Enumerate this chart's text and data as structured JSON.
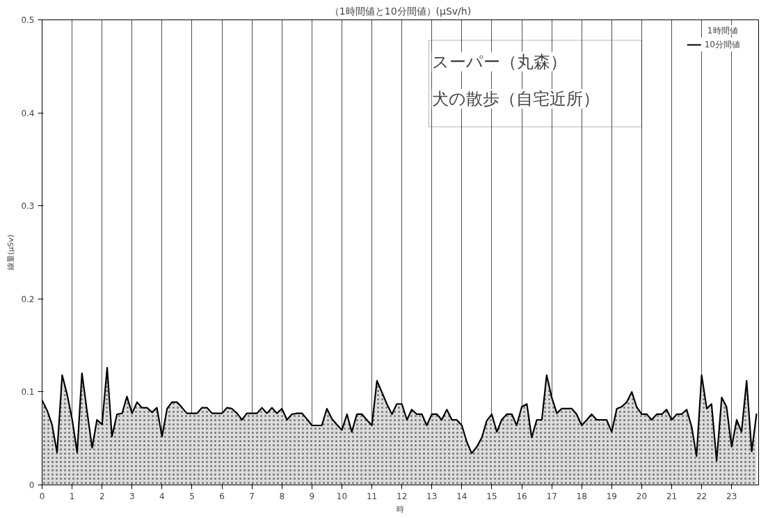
{
  "chart_data": {
    "type": "area",
    "title": "（1時間値と10分間値）(μSv/h)",
    "ylabel": "線量(μSv)",
    "xlabel": "時",
    "xlim": [
      0,
      23.9
    ],
    "xticks": [
      0,
      1,
      2,
      3,
      4,
      5,
      6,
      7,
      8,
      9,
      10,
      11,
      12,
      13,
      14,
      15,
      16,
      17,
      18,
      19,
      20,
      21,
      22,
      23
    ],
    "ylim": [
      0,
      0.5
    ],
    "yticks": [
      0,
      0.1,
      0.2,
      0.3,
      0.4,
      0.5
    ],
    "grid": "x",
    "legend": "top right",
    "annotations": [
      "スーパー（丸森）",
      "犬の散歩（自宅近所）",
      "1時間値"
    ],
    "series": [
      {
        "name": "10分間値",
        "color": "#000000",
        "x": [
          0,
          0.17,
          0.33,
          0.5,
          0.67,
          0.83,
          1,
          1.17,
          1.33,
          1.5,
          1.67,
          1.83,
          2,
          2.17,
          2.33,
          2.5,
          2.67,
          2.83,
          3,
          3.17,
          3.33,
          3.5,
          3.67,
          3.83,
          4,
          4.17,
          4.33,
          4.5,
          4.67,
          4.83,
          5,
          5.17,
          5.33,
          5.5,
          5.67,
          5.83,
          6,
          6.17,
          6.33,
          6.5,
          6.67,
          6.83,
          7,
          7.17,
          7.33,
          7.5,
          7.67,
          7.83,
          8,
          8.17,
          8.33,
          8.5,
          8.67,
          8.83,
          9,
          9.17,
          9.33,
          9.5,
          9.67,
          9.83,
          10,
          10.17,
          10.33,
          10.5,
          10.67,
          10.83,
          11,
          11.17,
          11.33,
          11.5,
          11.67,
          11.83,
          12,
          12.17,
          12.33,
          12.5,
          12.67,
          12.83,
          13,
          13.17,
          13.33,
          13.5,
          13.67,
          13.83,
          14,
          14.17,
          14.33,
          14.5,
          14.67,
          14.83,
          15,
          15.17,
          15.33,
          15.5,
          15.67,
          15.83,
          16,
          16.17,
          16.33,
          16.5,
          16.67,
          16.83,
          17,
          17.17,
          17.33,
          17.5,
          17.67,
          17.83,
          18,
          18.17,
          18.33,
          18.5,
          18.67,
          18.83,
          19,
          19.17,
          19.33,
          19.5,
          19.67,
          19.83,
          20,
          20.17,
          20.33,
          20.5,
          20.67,
          20.83,
          21,
          21.17,
          21.33,
          21.5,
          21.67,
          21.83,
          22,
          22.17,
          22.33,
          22.5,
          22.67,
          22.83,
          23,
          23.17,
          23.33,
          23.5,
          23.67,
          23.83
        ],
        "values": [
          0.091,
          0.08,
          0.065,
          0.035,
          0.118,
          0.098,
          0.071,
          0.035,
          0.12,
          0.079,
          0.04,
          0.07,
          0.065,
          0.126,
          0.052,
          0.076,
          0.077,
          0.095,
          0.077,
          0.089,
          0.083,
          0.083,
          0.078,
          0.083,
          0.052,
          0.082,
          0.089,
          0.089,
          0.083,
          0.077,
          0.077,
          0.077,
          0.083,
          0.083,
          0.077,
          0.077,
          0.077,
          0.083,
          0.082,
          0.077,
          0.07,
          0.077,
          0.077,
          0.077,
          0.083,
          0.077,
          0.083,
          0.077,
          0.082,
          0.07,
          0.076,
          0.077,
          0.077,
          0.071,
          0.064,
          0.064,
          0.064,
          0.082,
          0.071,
          0.065,
          0.059,
          0.076,
          0.057,
          0.076,
          0.076,
          0.07,
          0.064,
          0.112,
          0.1,
          0.087,
          0.076,
          0.087,
          0.087,
          0.07,
          0.081,
          0.076,
          0.076,
          0.064,
          0.076,
          0.076,
          0.07,
          0.081,
          0.07,
          0.07,
          0.064,
          0.046,
          0.034,
          0.041,
          0.051,
          0.069,
          0.076,
          0.057,
          0.07,
          0.076,
          0.076,
          0.064,
          0.084,
          0.087,
          0.051,
          0.07,
          0.07,
          0.118,
          0.094,
          0.077,
          0.082,
          0.082,
          0.082,
          0.076,
          0.064,
          0.07,
          0.076,
          0.07,
          0.07,
          0.07,
          0.057,
          0.082,
          0.084,
          0.089,
          0.1,
          0.084,
          0.076,
          0.076,
          0.07,
          0.076,
          0.076,
          0.081,
          0.07,
          0.076,
          0.076,
          0.081,
          0.062,
          0.031,
          0.118,
          0.082,
          0.087,
          0.026,
          0.094,
          0.084,
          0.041,
          0.07,
          0.057,
          0.112,
          0.036,
          0.076
        ]
      }
    ]
  }
}
